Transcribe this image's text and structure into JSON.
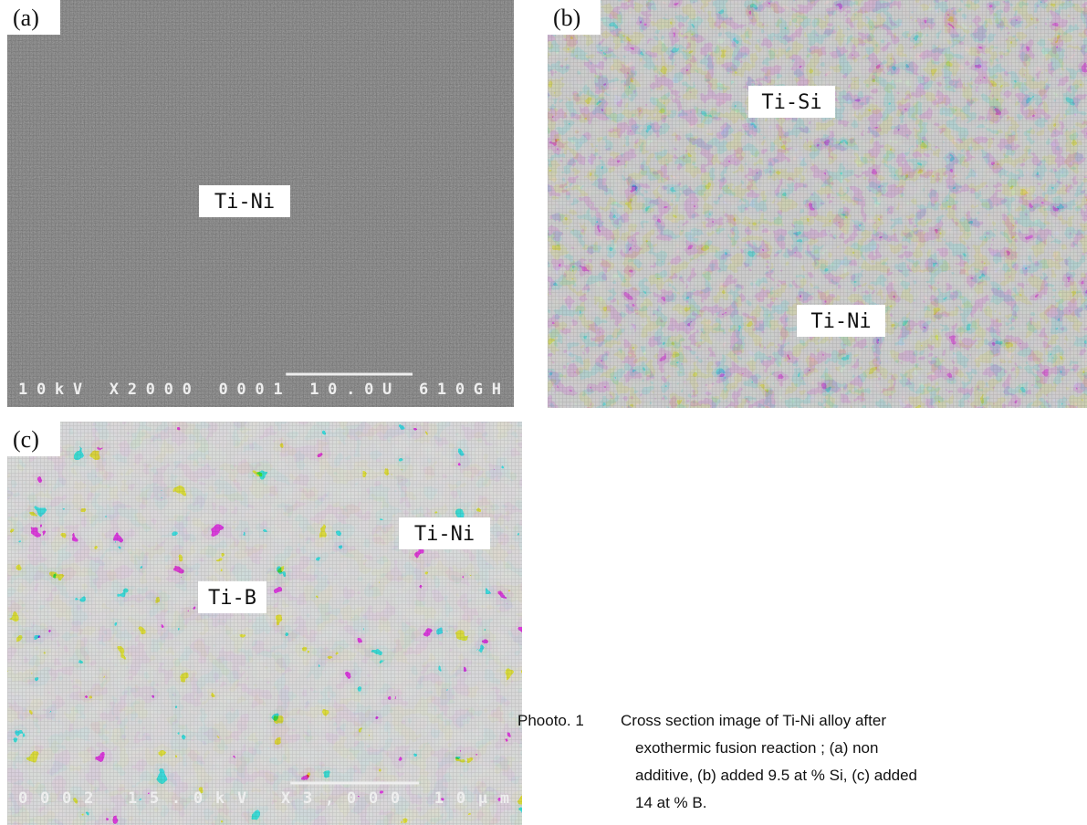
{
  "panels": [
    {
      "id": "(a)",
      "labels": [
        "Ti-Ni"
      ],
      "info": "10kV X2000 0001 10.0U 610GH"
    },
    {
      "id": "(b)",
      "labels": [
        "Ti-Si",
        "Ti-Ni"
      ]
    },
    {
      "id": "(c)",
      "labels": [
        "Ti-Ni",
        "Ti-B"
      ],
      "info": "0002 15.0kV X3,000 10μm"
    }
  ],
  "caption": {
    "label": "Phooto. 1",
    "lines": [
      "Cross section image of Ti-Ni alloy after",
      "exothermic fusion reaction ; (a) non",
      "additive, (b) added 9.5 at % Si, (c) added",
      "14 at % B."
    ]
  }
}
